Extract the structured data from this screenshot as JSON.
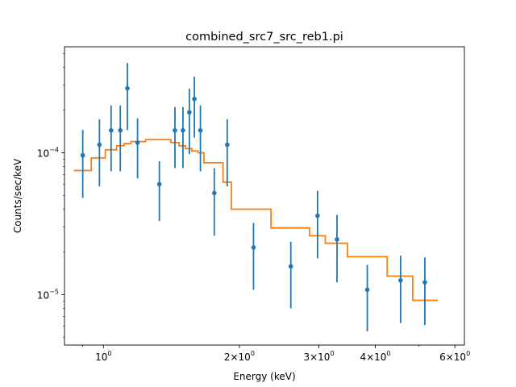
{
  "chart_data": {
    "type": "scatter",
    "title": "combined_src7_src_reb1.pi",
    "xlabel": "Energy (keV)",
    "ylabel": "Counts/sec/keV",
    "xscale": "log",
    "yscale": "log",
    "xlim": [
      0.82,
      6.3
    ],
    "ylim": [
      4.4e-06,
      0.00056
    ],
    "grid": false,
    "x_ticks": [
      {
        "value": 1,
        "label": "10^0",
        "base": "10",
        "exp": "0"
      },
      {
        "value": 2,
        "label": "2×10^0",
        "base": "2×10",
        "exp": "0"
      },
      {
        "value": 3,
        "label": "3×10^0",
        "base": "3×10",
        "exp": "0"
      },
      {
        "value": 4,
        "label": "4×10^0",
        "base": "4×10",
        "exp": "0"
      },
      {
        "value": 6,
        "label": "6×10^0",
        "base": "6×10",
        "exp": "0"
      }
    ],
    "y_ticks": [
      {
        "value": 1e-05,
        "label": "10^-5",
        "base": "10",
        "exp": "−5"
      },
      {
        "value": 0.0001,
        "label": "10^-4",
        "base": "10",
        "exp": "−4"
      }
    ],
    "colors": {
      "data": "#1f77b4",
      "model": "#ff7f0e"
    },
    "series": [
      {
        "type": "errorbar",
        "x": [
          0.9,
          0.98,
          1.04,
          1.09,
          1.13,
          1.19,
          1.33,
          1.44,
          1.5,
          1.55,
          1.59,
          1.64,
          1.76,
          1.88,
          2.15,
          2.6,
          2.98,
          3.29,
          3.84,
          4.55,
          5.15
        ],
        "y": [
          9.6e-05,
          0.000114,
          0.000144,
          0.000144,
          0.000285,
          0.000118,
          6e-05,
          0.000144,
          0.000144,
          0.000193,
          0.00024,
          0.000144,
          5.2e-05,
          0.000114,
          2.15e-05,
          1.58e-05,
          3.6e-05,
          2.45e-05,
          1.08e-05,
          1.26e-05,
          1.22e-05
        ],
        "y_err_low": [
          4.8e-05,
          5.8e-05,
          7.4e-05,
          7.4e-05,
          0.000145,
          6.6e-05,
          3.3e-05,
          7.8e-05,
          7.8e-05,
          9.8e-05,
          0.000128,
          7.4e-05,
          2.6e-05,
          5.8e-05,
          1.08e-05,
          8e-06,
          1.8e-05,
          1.22e-05,
          5.5e-06,
          6.3e-06,
          6.1e-06
        ],
        "y_err_high": [
          0.000145,
          0.000172,
          0.000216,
          0.000216,
          0.00043,
          0.000175,
          8.7e-05,
          0.00021,
          0.00021,
          0.000284,
          0.000345,
          0.000216,
          7.8e-05,
          0.000172,
          3.2e-05,
          2.36e-05,
          5.4e-05,
          3.65e-05,
          1.62e-05,
          1.88e-05,
          1.83e-05
        ]
      },
      {
        "type": "step",
        "x_edges": [
          0.86,
          0.94,
          1.01,
          1.07,
          1.11,
          1.15,
          1.24,
          1.41,
          1.47,
          1.52,
          1.57,
          1.62,
          1.67,
          1.84,
          1.92,
          2.35,
          2.86,
          3.1,
          3.47,
          4.25,
          4.84,
          5.5
        ],
        "y": [
          7.5e-05,
          9.2e-05,
          0.000105,
          0.000112,
          0.000116,
          0.00012,
          0.000124,
          0.000118,
          0.000112,
          0.000107,
          0.000103,
          0.0001,
          8.5e-05,
          6.2e-05,
          4e-05,
          2.95e-05,
          2.6e-05,
          2.3e-05,
          1.85e-05,
          1.35e-05,
          9.1e-06
        ]
      }
    ]
  }
}
